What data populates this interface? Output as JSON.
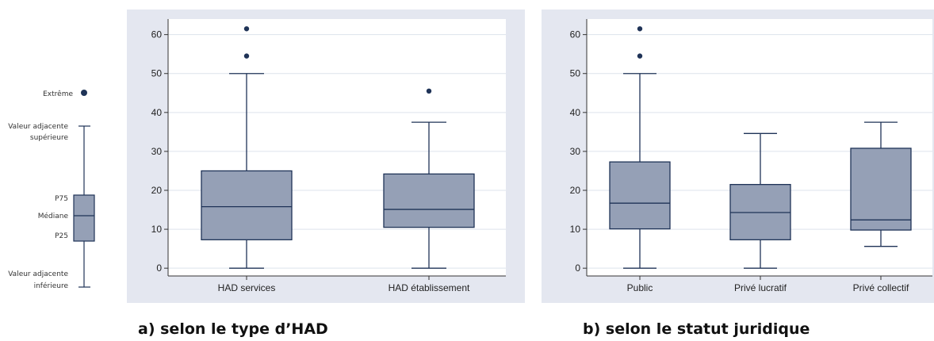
{
  "legend": {
    "extreme": "Extrême",
    "upper_adjacent_1": "Valeur adjacente",
    "upper_adjacent_2": "supérieure",
    "p75": "P75",
    "median": "Médiane",
    "p25": "P25",
    "lower_adjacent_1": "Valeur adjacente",
    "lower_adjacent_2": "inférieure"
  },
  "colors": {
    "panel_bg": "#e4e7f0",
    "plot_bg": "#ffffff",
    "box_fill": "#95a0b6",
    "stroke": "#1f3357",
    "outlier": "#1f3357",
    "grid": "#dde3ec"
  },
  "chart_data": [
    {
      "type": "boxplot",
      "title": "",
      "caption": "a) selon le type d’HAD",
      "xlabel": "",
      "ylabel": "",
      "ylim": [
        -2,
        64
      ],
      "yticks": [
        0,
        10,
        20,
        30,
        40,
        50,
        60
      ],
      "grid": true,
      "categories": [
        "HAD services",
        "HAD établissement"
      ],
      "boxes": [
        {
          "min": 0,
          "q1": 7.3,
          "median": 15.8,
          "q3": 25,
          "max": 50,
          "outliers": [
            54.5,
            61.5
          ]
        },
        {
          "min": 0,
          "q1": 10.5,
          "median": 15.1,
          "q3": 24.2,
          "max": 37.5,
          "outliers": [
            45.5
          ]
        }
      ]
    },
    {
      "type": "boxplot",
      "title": "",
      "caption": "b) selon le statut juridique",
      "xlabel": "",
      "ylabel": "",
      "ylim": [
        -2,
        64
      ],
      "yticks": [
        0,
        10,
        20,
        30,
        40,
        50,
        60
      ],
      "grid": true,
      "categories": [
        "Public",
        "Privé lucratif",
        "Privé collectif"
      ],
      "boxes": [
        {
          "min": 0,
          "q1": 10.1,
          "median": 16.7,
          "q3": 27.3,
          "max": 50,
          "outliers": [
            54.5,
            61.5
          ]
        },
        {
          "min": 0,
          "q1": 7.3,
          "median": 14.3,
          "q3": 21.5,
          "max": 34.6,
          "outliers": []
        },
        {
          "min": 5.6,
          "q1": 9.8,
          "median": 12.4,
          "q3": 30.8,
          "max": 37.5,
          "outliers": []
        }
      ]
    }
  ]
}
